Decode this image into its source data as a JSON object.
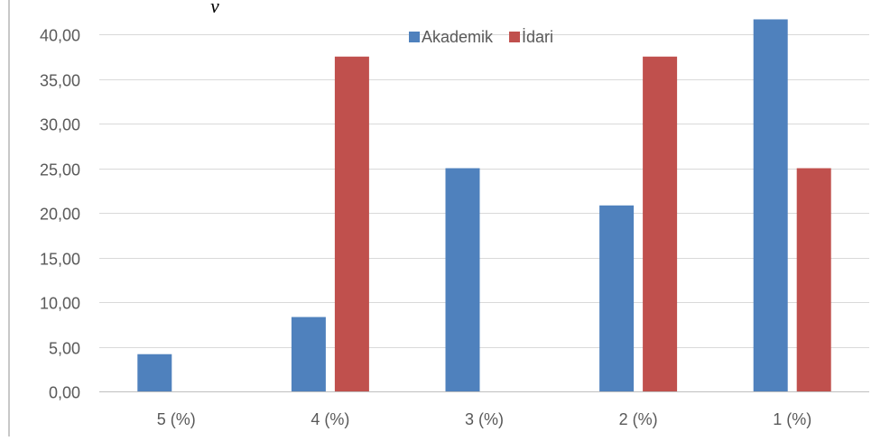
{
  "chart_data": {
    "type": "bar",
    "categories": [
      "5 (%)",
      "4 (%)",
      "3 (%)",
      "2 (%)",
      "1 (%)"
    ],
    "series": [
      {
        "name": "Akademik",
        "color": "#4f81bd",
        "values": [
          4.17,
          8.33,
          25.0,
          20.83,
          41.67
        ]
      },
      {
        "name": "İdari",
        "color": "#c0504d",
        "values": [
          0,
          37.5,
          0,
          37.5,
          25.0
        ]
      }
    ],
    "ylim": [
      0,
      40
    ],
    "yticks": [
      "0,00",
      "5,00",
      "10,00",
      "15,00",
      "20,00",
      "25,00",
      "30,00",
      "35,00",
      "40,00"
    ],
    "title": "",
    "xlabel": "",
    "ylabel": "",
    "grid": true,
    "legend_position": "top-center"
  },
  "page": {
    "top_fragment": "y"
  }
}
